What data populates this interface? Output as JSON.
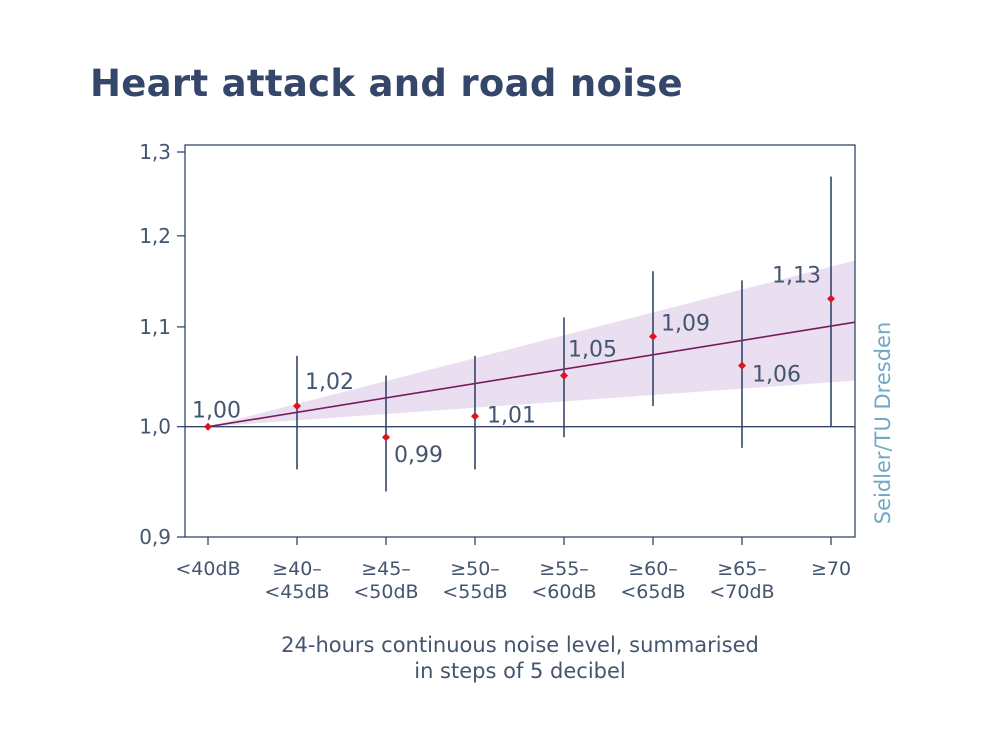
{
  "title": "Heart attack and road noise",
  "source_credit": "Seidler/TU Dresden",
  "chart_data": {
    "type": "scatter",
    "title": "Heart attack and road noise",
    "xlabel": [
      "24-hours continuous noise level, summarised",
      "in steps of 5 decibel"
    ],
    "ylabel": "",
    "categories": [
      [
        "<40dB"
      ],
      [
        "≥40–",
        "<45dB"
      ],
      [
        "≥45–",
        "<50dB"
      ],
      [
        "≥50–",
        "<55dB"
      ],
      [
        "≥55–",
        "<60dB"
      ],
      [
        "≥60–",
        "<65dB"
      ],
      [
        "≥65–",
        "<70dB"
      ],
      [
        "≥70"
      ]
    ],
    "values": [
      1.0,
      1.02,
      0.99,
      1.01,
      1.05,
      1.09,
      1.06,
      1.13
    ],
    "value_labels": [
      "1,00",
      "1,02",
      "0,99",
      "1,01",
      "1,05",
      "1,09",
      "1,06",
      "1,13"
    ],
    "ci_lower": [
      1.0,
      0.96,
      0.94,
      0.96,
      0.99,
      1.02,
      0.98,
      1.0
    ],
    "ci_upper": [
      1.0,
      1.07,
      1.05,
      1.07,
      1.11,
      1.16,
      1.15,
      1.27
    ],
    "trend_line": {
      "start": 1.0,
      "end": 1.105,
      "color": "#7a1a5e"
    },
    "trend_band": {
      "upper_end": 1.172,
      "lower_end": 1.045,
      "color": "#eadff0"
    },
    "y_scale": "log",
    "ylim": [
      0.9,
      1.3
    ],
    "y_ticks": [
      0.9,
      1.0,
      1.1,
      1.2,
      1.3
    ],
    "y_tick_labels": [
      "0,9",
      "1,0",
      "1,1",
      "1,2",
      "1,3"
    ],
    "reference_line": 1.0,
    "grid": false,
    "colors": {
      "point": "#e0141e",
      "errorbar": "#34466a",
      "axis": "#34466a",
      "text": "#44556f",
      "source": "#6ea9c6"
    }
  }
}
